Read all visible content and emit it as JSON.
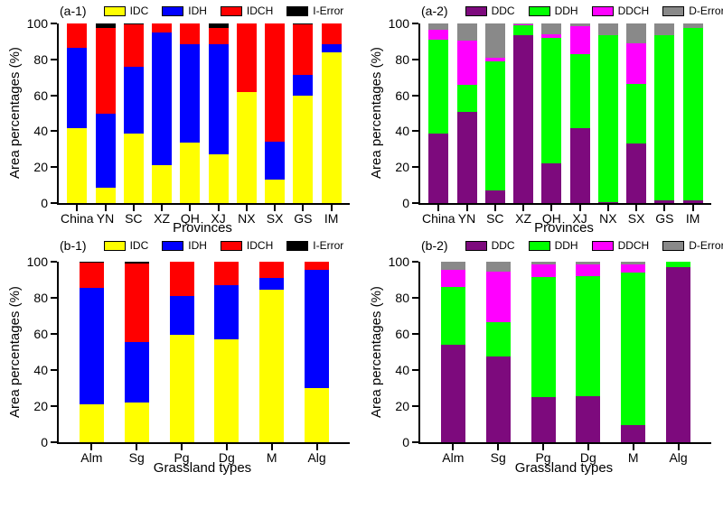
{
  "colors": {
    "IDC": "#FFFF00",
    "IDH": "#0000FF",
    "IDCH": "#FF0000",
    "I-Error": "#000000",
    "DDC": "#7D0A7D",
    "DDH": "#00FF00",
    "DDCH": "#FF00FF",
    "D-Error": "#898989",
    "axis": "#000000",
    "background": "#FFFFFF"
  },
  "chart_data": [
    {
      "id": "a-1",
      "tag": "(a-1)",
      "type": "bar",
      "stacked": true,
      "legend_position": "top",
      "grid": false,
      "ylim": [
        0,
        100
      ],
      "yticks": [
        0,
        20,
        40,
        60,
        80,
        100
      ],
      "ylabel": "Area percentages (%)",
      "xlabel": "Provinces",
      "categories": [
        "China",
        "YN",
        "SC",
        "XZ",
        "QH",
        "XJ",
        "NX",
        "SX",
        "GS",
        "IM"
      ],
      "series": [
        {
          "name": "IDC",
          "color": "#FFFF00",
          "values": [
            41.5,
            8.5,
            38.5,
            21,
            33.5,
            27,
            62,
            13,
            60,
            84
          ]
        },
        {
          "name": "IDH",
          "color": "#0000FF",
          "values": [
            45,
            41.5,
            37.5,
            74,
            55,
            61.5,
            0,
            21,
            11.5,
            4.5
          ]
        },
        {
          "name": "IDCH",
          "color": "#FF0000",
          "values": [
            13.5,
            47.5,
            23.5,
            5,
            11.5,
            9,
            38,
            66,
            28,
            11.5
          ]
        },
        {
          "name": "I-Error",
          "color": "#000000",
          "values": [
            0,
            2.5,
            0.5,
            0,
            0,
            2.5,
            0,
            0,
            0.5,
            0
          ]
        }
      ]
    },
    {
      "id": "a-2",
      "tag": "(a-2)",
      "type": "bar",
      "stacked": true,
      "legend_position": "top",
      "grid": false,
      "ylim": [
        0,
        100
      ],
      "yticks": [
        0,
        20,
        40,
        60,
        80,
        100
      ],
      "ylabel": "Area percentages (%)",
      "xlabel": "Provinces",
      "categories": [
        "China",
        "YN",
        "SC",
        "XZ",
        "QH",
        "XJ",
        "NX",
        "SX",
        "GS",
        "IM"
      ],
      "series": [
        {
          "name": "DDC",
          "color": "#7D0A7D",
          "values": [
            38.5,
            51,
            7,
            93.5,
            22,
            41.5,
            0.5,
            33,
            1.5,
            1.5
          ]
        },
        {
          "name": "DDH",
          "color": "#00FF00",
          "values": [
            52.5,
            15,
            72,
            5.5,
            70,
            41.5,
            93,
            33.5,
            92,
            96
          ]
        },
        {
          "name": "DDCH",
          "color": "#FF00FF",
          "values": [
            5.5,
            24.5,
            2,
            0.5,
            2,
            15.5,
            0,
            22.5,
            0,
            0
          ]
        },
        {
          "name": "D-Error",
          "color": "#898989",
          "values": [
            3.5,
            9.5,
            19,
            0.5,
            6,
            1.5,
            6.5,
            11,
            6.5,
            2.5
          ]
        }
      ]
    },
    {
      "id": "b-1",
      "tag": "(b-1)",
      "type": "bar",
      "stacked": true,
      "legend_position": "top",
      "grid": false,
      "ylim": [
        0,
        100
      ],
      "yticks": [
        0,
        20,
        40,
        60,
        80,
        100
      ],
      "ylabel": "Area percentages (%)",
      "xlabel": "Grassland types",
      "categories": [
        "Alm",
        "Sg",
        "Pg",
        "Dg",
        "M",
        "Alg"
      ],
      "series": [
        {
          "name": "IDC",
          "color": "#FFFF00",
          "values": [
            21,
            22,
            59.5,
            57,
            84.5,
            30
          ]
        },
        {
          "name": "IDH",
          "color": "#0000FF",
          "values": [
            64.5,
            33.5,
            21.5,
            30,
            6.5,
            65.5
          ]
        },
        {
          "name": "IDCH",
          "color": "#FF0000",
          "values": [
            14,
            43.5,
            19,
            13,
            9,
            4.5
          ]
        },
        {
          "name": "I-Error",
          "color": "#000000",
          "values": [
            0.5,
            1,
            0,
            0,
            0,
            0
          ]
        }
      ]
    },
    {
      "id": "b-2",
      "tag": "(b-2)",
      "type": "bar",
      "stacked": true,
      "legend_position": "top",
      "grid": false,
      "ylim": [
        0,
        100
      ],
      "yticks": [
        0,
        20,
        40,
        60,
        80,
        100
      ],
      "ylabel": "Area percentages (%)",
      "xlabel": "Grassland types",
      "categories": [
        "Alm",
        "Sg",
        "Pg",
        "Dg",
        "M",
        "Alg"
      ],
      "series": [
        {
          "name": "DDC",
          "color": "#7D0A7D",
          "values": [
            54,
            47.5,
            25,
            25.5,
            9.5,
            97
          ]
        },
        {
          "name": "DDH",
          "color": "#00FF00",
          "values": [
            32,
            19,
            66.5,
            66.5,
            84.5,
            3
          ]
        },
        {
          "name": "DDCH",
          "color": "#FF00FF",
          "values": [
            9.5,
            28,
            7,
            6.5,
            4.5,
            0
          ]
        },
        {
          "name": "D-Error",
          "color": "#898989",
          "values": [
            4.5,
            5.5,
            1.5,
            1.5,
            1.5,
            0
          ]
        }
      ]
    }
  ]
}
